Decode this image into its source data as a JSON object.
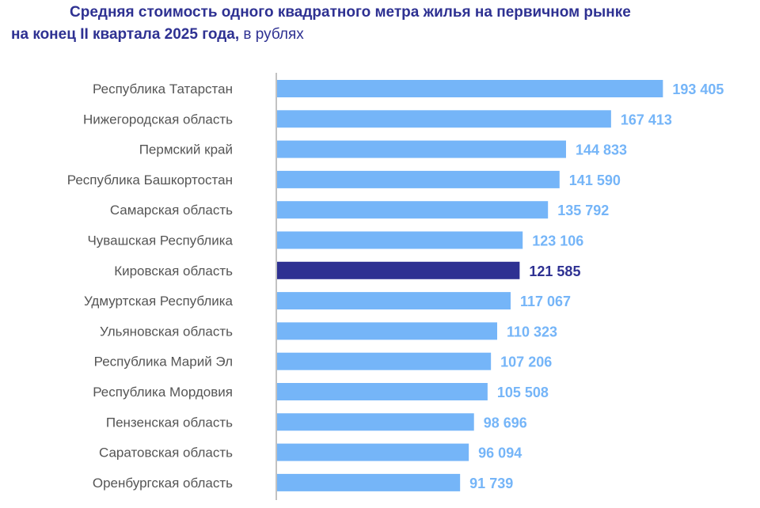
{
  "title": {
    "line1": "Средняя стоимость одного квадратного метра жилья на первичном рынке",
    "line2_bold": "на конец II квартала 2025 года,",
    "line2_normal": " в рублях"
  },
  "colors": {
    "title": "#2e3192",
    "bar": "#75b5f8",
    "bar_highlight": "#2e3192",
    "label_value": "#75b5f8",
    "label_value_highlight": "#2e3192",
    "category_text": "#555555",
    "axis": "#999999"
  },
  "chart_data": {
    "type": "bar",
    "orientation": "horizontal",
    "categories": [
      "Республика Татарстан",
      "Нижегородская область",
      "Пермский край",
      "Республика Башкортостан",
      "Самарская область",
      "Чувашская Республика",
      "Кировская область",
      "Удмуртская Республика",
      "Ульяновская область",
      "Республика Марий Эл",
      "Республика Мордовия",
      "Пензенская область",
      "Саратовская область",
      "Оренбургская область"
    ],
    "values": [
      193405,
      167413,
      144833,
      141590,
      135792,
      123106,
      121585,
      117067,
      110323,
      107206,
      105508,
      98696,
      96094,
      91739
    ],
    "value_labels": [
      "193 405",
      "167 413",
      "144 833",
      "141 590",
      "135 792",
      "123 106",
      "121 585",
      "117 067",
      "110 323",
      "107 206",
      "105 508",
      "98 696",
      "96 094",
      "91 739"
    ],
    "highlight": "Кировская область",
    "xlim": [
      0,
      200000
    ],
    "grid": false,
    "legend": "none"
  }
}
